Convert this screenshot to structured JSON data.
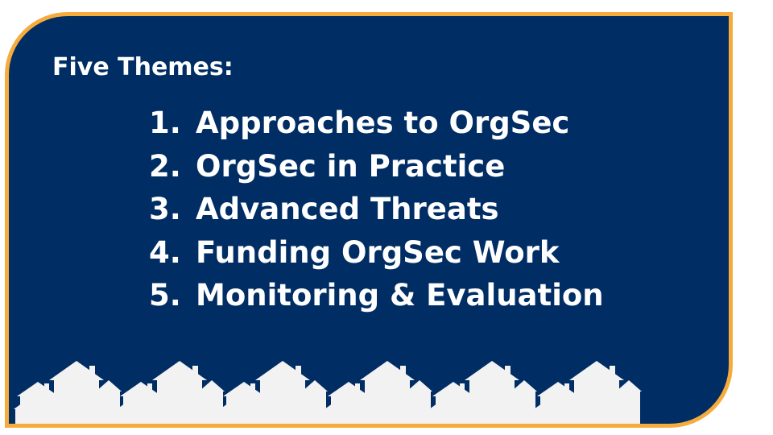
{
  "heading": "Five Themes:",
  "themes": [
    {
      "number": "1.",
      "label": "Approaches to OrgSec"
    },
    {
      "number": "2.",
      "label": "OrgSec in Practice"
    },
    {
      "number": "3.",
      "label": "Advanced Threats"
    },
    {
      "number": "4.",
      "label": "Funding OrgSec Work"
    },
    {
      "number": "5.",
      "label": "Monitoring & Evaluation"
    }
  ],
  "colors": {
    "panel": "#002d64",
    "border": "#f5ac3c",
    "text": "#ffffff",
    "houses": "#f2f2f2"
  },
  "decoration": "row of house icons"
}
